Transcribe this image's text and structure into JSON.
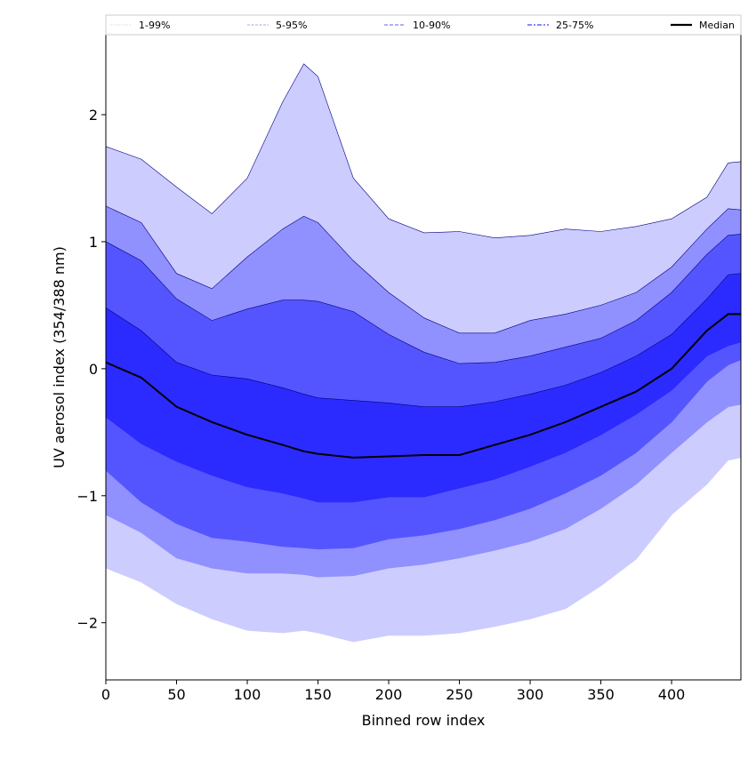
{
  "chart_data": {
    "type": "area",
    "title": "",
    "xlabel": "Binned row index",
    "ylabel": "UV aerosol index (354/388 nm)",
    "xlim": [
      0,
      449
    ],
    "ylim": [
      -2.45,
      2.63
    ],
    "xticks": [
      0,
      50,
      100,
      150,
      200,
      250,
      300,
      350,
      400
    ],
    "yticks": [
      -2,
      -1,
      0,
      1,
      2
    ],
    "ytick_labels": [
      "−2",
      "−1",
      "0",
      "1",
      "2"
    ],
    "grid": false,
    "legend_placement": "top (above axes, single row)",
    "x": [
      0,
      25,
      50,
      75,
      100,
      125,
      140,
      150,
      175,
      200,
      225,
      250,
      275,
      300,
      325,
      350,
      375,
      400,
      425,
      440,
      449
    ],
    "percentiles": {
      "p1": [
        -1.57,
        -1.68,
        -1.85,
        -1.97,
        -2.06,
        -2.08,
        -2.06,
        -2.08,
        -2.15,
        -2.1,
        -2.1,
        -2.08,
        -2.03,
        -1.97,
        -1.89,
        -1.71,
        -1.5,
        -1.15,
        -0.91,
        -0.72,
        -0.7
      ],
      "p5": [
        -1.15,
        -1.29,
        -1.49,
        -1.57,
        -1.61,
        -1.61,
        -1.62,
        -1.64,
        -1.63,
        -1.57,
        -1.54,
        -1.49,
        -1.43,
        -1.36,
        -1.26,
        -1.1,
        -0.91,
        -0.66,
        -0.42,
        -0.3,
        -0.28
      ],
      "p10": [
        -0.8,
        -1.05,
        -1.22,
        -1.33,
        -1.36,
        -1.4,
        -1.41,
        -1.42,
        -1.41,
        -1.34,
        -1.31,
        -1.26,
        -1.19,
        -1.1,
        -0.98,
        -0.84,
        -0.66,
        -0.42,
        -0.1,
        0.03,
        0.07
      ],
      "p25": [
        -0.38,
        -0.59,
        -0.73,
        -0.84,
        -0.93,
        -0.98,
        -1.02,
        -1.05,
        -1.05,
        -1.01,
        -1.01,
        -0.94,
        -0.87,
        -0.77,
        -0.66,
        -0.52,
        -0.36,
        -0.17,
        0.1,
        0.18,
        0.21
      ],
      "p50": [
        0.05,
        -0.07,
        -0.3,
        -0.42,
        -0.52,
        -0.6,
        -0.65,
        -0.67,
        -0.7,
        -0.69,
        -0.68,
        -0.68,
        -0.6,
        -0.52,
        -0.42,
        -0.3,
        -0.18,
        0.0,
        0.3,
        0.43,
        0.43
      ],
      "p75": [
        0.48,
        0.3,
        0.05,
        -0.05,
        -0.08,
        -0.15,
        -0.2,
        -0.23,
        -0.25,
        -0.27,
        -0.3,
        -0.3,
        -0.26,
        -0.2,
        -0.13,
        -0.03,
        0.1,
        0.27,
        0.55,
        0.74,
        0.75
      ],
      "p90": [
        1.0,
        0.85,
        0.55,
        0.38,
        0.47,
        0.54,
        0.54,
        0.53,
        0.45,
        0.27,
        0.13,
        0.04,
        0.05,
        0.1,
        0.17,
        0.24,
        0.38,
        0.6,
        0.9,
        1.05,
        1.06
      ],
      "p95": [
        1.28,
        1.15,
        0.75,
        0.63,
        0.88,
        1.1,
        1.2,
        1.15,
        0.85,
        0.6,
        0.4,
        0.28,
        0.28,
        0.38,
        0.43,
        0.5,
        0.6,
        0.8,
        1.1,
        1.26,
        1.25
      ],
      "p99": [
        1.75,
        1.65,
        1.43,
        1.22,
        1.5,
        2.1,
        2.4,
        2.3,
        1.5,
        1.18,
        1.07,
        1.08,
        1.03,
        1.05,
        1.1,
        1.08,
        1.12,
        1.18,
        1.35,
        1.62,
        1.63
      ]
    },
    "series": [
      {
        "name": "1-99%",
        "lower": "p1",
        "upper": "p99",
        "color": "#ccccff",
        "line": "#c8c8f0"
      },
      {
        "name": "5-95%",
        "lower": "p5",
        "upper": "p95",
        "color": "#9090ff",
        "line": "#a0a0e0"
      },
      {
        "name": "10-90%",
        "lower": "p10",
        "upper": "p90",
        "color": "#5555ff",
        "line": "#8080f0"
      },
      {
        "name": "25-75%",
        "lower": "p25",
        "upper": "p75",
        "color": "#2b2bff",
        "line": "#6060ff"
      },
      {
        "name": "Median",
        "line_of": "p50",
        "color": "#000000"
      }
    ]
  }
}
